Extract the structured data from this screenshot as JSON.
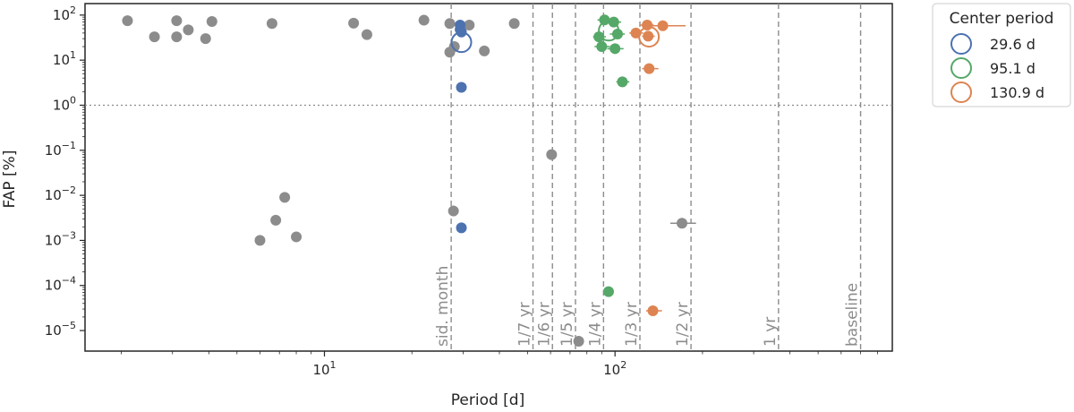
{
  "chart_data": {
    "type": "scatter",
    "xscale": "log",
    "yscale": "log",
    "xlabel": "Period [d]",
    "ylabel": "FAP [%]",
    "xlim": [
      1.5,
      900
    ],
    "ylim": [
      3.5e-06,
      180
    ],
    "x_ticks": [
      {
        "value": 10,
        "label": "10^1"
      },
      {
        "value": 100,
        "label": "10^2"
      }
    ],
    "y_ticks": [
      {
        "value": 100,
        "label": "10^2"
      },
      {
        "value": 10,
        "label": "10^1"
      },
      {
        "value": 1,
        "label": "10^0"
      },
      {
        "value": 0.1,
        "label": "10^-1"
      },
      {
        "value": 0.01,
        "label": "10^-2"
      },
      {
        "value": 0.001,
        "label": "10^-3"
      },
      {
        "value": 0.0001,
        "label": "10^-4"
      },
      {
        "value": 1e-05,
        "label": "10^-5"
      }
    ],
    "threshold_line": {
      "y": 1,
      "style": "dotted"
    },
    "reference_lines": [
      {
        "x": 27.3,
        "label": "sid. month"
      },
      {
        "x": 52.2,
        "label": "1/7 yr"
      },
      {
        "x": 60.9,
        "label": "1/6 yr"
      },
      {
        "x": 73.1,
        "label": "1/5 yr"
      },
      {
        "x": 91.3,
        "label": "1/4 yr"
      },
      {
        "x": 121.8,
        "label": "1/3 yr"
      },
      {
        "x": 182.6,
        "label": "1/2 yr"
      },
      {
        "x": 365.25,
        "label": "1 yr"
      },
      {
        "x": 700,
        "label": "baseline"
      }
    ],
    "legend": {
      "title": "Center period",
      "position": "outside-right",
      "entries": [
        {
          "label": "29.6 d",
          "color": "#4c72b0"
        },
        {
          "label": "95.1 d",
          "color": "#55a868"
        },
        {
          "label": "130.9 d",
          "color": "#dd8452"
        }
      ]
    },
    "series": [
      {
        "name": "other",
        "color": "#8c8c8c",
        "points": [
          {
            "x": 2.1,
            "y": 75
          },
          {
            "x": 2.6,
            "y": 33
          },
          {
            "x": 3.1,
            "y": 75
          },
          {
            "x": 3.1,
            "y": 33
          },
          {
            "x": 3.4,
            "y": 47
          },
          {
            "x": 3.9,
            "y": 30
          },
          {
            "x": 4.1,
            "y": 72
          },
          {
            "x": 6.6,
            "y": 65
          },
          {
            "x": 12.6,
            "y": 66
          },
          {
            "x": 14.0,
            "y": 37
          },
          {
            "x": 22.0,
            "y": 77
          },
          {
            "x": 27.0,
            "y": 65
          },
          {
            "x": 27.0,
            "y": 15
          },
          {
            "x": 28.0,
            "y": 20
          },
          {
            "x": 31.5,
            "y": 60
          },
          {
            "x": 35.5,
            "y": 16
          },
          {
            "x": 45.0,
            "y": 65
          },
          {
            "x": 6.0,
            "y": 0.001
          },
          {
            "x": 6.8,
            "y": 0.0028
          },
          {
            "x": 7.3,
            "y": 0.009
          },
          {
            "x": 8.0,
            "y": 0.0012
          },
          {
            "x": 27.8,
            "y": 0.0045
          },
          {
            "x": 60.5,
            "y": 0.08
          },
          {
            "x": 75.0,
            "y": 5.8e-06
          },
          {
            "x": 170,
            "y": 0.0024,
            "xerr": [
              155,
              190
            ]
          }
        ]
      },
      {
        "name": "29.6 d",
        "color": "#4c72b0",
        "points": [
          {
            "x": 29.3,
            "y": 60
          },
          {
            "x": 29.3,
            "y": 48
          },
          {
            "x": 29.6,
            "y": 42
          },
          {
            "x": 29.6,
            "y": 2.5
          },
          {
            "x": 29.6,
            "y": 0.0019
          }
        ],
        "center": {
          "x": 29.6,
          "y": 25
        }
      },
      {
        "name": "95.1 d",
        "color": "#55a868",
        "points": [
          {
            "x": 92,
            "y": 78,
            "xerr": [
              87,
              98
            ]
          },
          {
            "x": 99,
            "y": 70,
            "xerr": [
              93,
              105
            ]
          },
          {
            "x": 88,
            "y": 33,
            "xerr": [
              84,
              93
            ]
          },
          {
            "x": 102,
            "y": 38,
            "xerr": [
              96,
              108
            ]
          },
          {
            "x": 90,
            "y": 20,
            "xerr": [
              85,
              96
            ]
          },
          {
            "x": 100,
            "y": 18,
            "xerr": [
              94,
              107
            ]
          },
          {
            "x": 106,
            "y": 3.3,
            "xerr": [
              101,
              112
            ]
          },
          {
            "x": 95,
            "y": 7.3e-05,
            "xerr": [
              91,
              99
            ]
          }
        ],
        "center": {
          "x": 95.1,
          "y": 45
        }
      },
      {
        "name": "130.9 d",
        "color": "#dd8452",
        "points": [
          {
            "x": 129,
            "y": 60,
            "xerr": [
              122,
              136
            ]
          },
          {
            "x": 146,
            "y": 58,
            "xerr": [
              132,
              175
            ]
          },
          {
            "x": 118,
            "y": 40,
            "xerr": [
              112,
              125
            ]
          },
          {
            "x": 130,
            "y": 34,
            "xerr": [
              124,
              137
            ]
          },
          {
            "x": 131,
            "y": 6.5,
            "xerr": [
              124,
              141
            ]
          },
          {
            "x": 135,
            "y": 2.75e-05,
            "xerr": [
              128,
              145
            ]
          }
        ],
        "center": {
          "x": 130.9,
          "y": 33
        }
      }
    ]
  }
}
